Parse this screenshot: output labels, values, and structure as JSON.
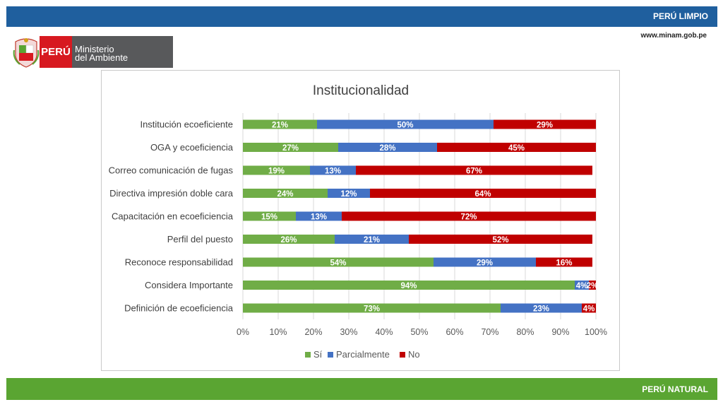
{
  "header": {
    "banner": "PERÚ LIMPIO",
    "url": "www.minam.gob.pe"
  },
  "logo": {
    "country": "PERÚ",
    "ministry_line1": "Ministerio",
    "ministry_line2": "del Ambiente"
  },
  "footer": {
    "banner": "PERÚ NATURAL"
  },
  "colors": {
    "si": "#70ad47",
    "parcialmente": "#4472c4",
    "no": "#c00000",
    "header": "#1f5f9e",
    "footer": "#5aa532"
  },
  "chart_data": {
    "type": "bar",
    "orientation": "horizontal",
    "stacked": "percent",
    "title": "Institucionalidad",
    "categories": [
      "Institución ecoeficiente",
      "OGA y ecoeficiencia",
      "Correo comunicación de fugas",
      "Directiva impresión doble cara",
      "Capacitación en ecoeficiencia",
      "Perfil del puesto",
      "Reconoce responsabilidad",
      "Considera Importante",
      "Definición de ecoeficiencia"
    ],
    "series": [
      {
        "name": "Sí",
        "values": [
          21,
          27,
          19,
          24,
          15,
          26,
          54,
          94,
          73
        ]
      },
      {
        "name": "Parcialmente",
        "values": [
          50,
          28,
          13,
          12,
          13,
          21,
          29,
          4,
          23
        ]
      },
      {
        "name": "No",
        "values": [
          29,
          45,
          67,
          64,
          72,
          52,
          16,
          2,
          4
        ]
      }
    ],
    "xlim": [
      0,
      100
    ],
    "x_ticks": [
      "0%",
      "10%",
      "20%",
      "30%",
      "40%",
      "50%",
      "60%",
      "70%",
      "80%",
      "90%",
      "100%"
    ],
    "legend": "bottom",
    "grid": true
  }
}
